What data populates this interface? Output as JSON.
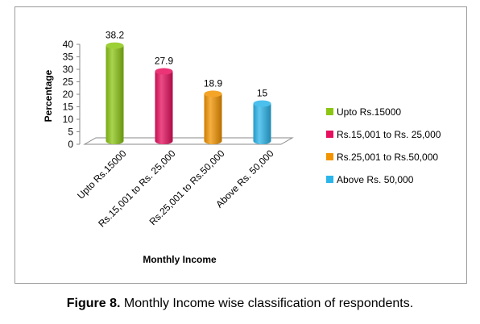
{
  "chart_data": {
    "type": "bar",
    "categories": [
      "Upto Rs.15000",
      "Rs.15,001 to Rs. 25,000",
      "Rs.25,001 to Rs.50,000",
      "Above Rs. 50,000"
    ],
    "values": [
      38.2,
      27.9,
      18.9,
      15
    ],
    "value_labels": [
      "38.2",
      "27.9",
      "18.9",
      "15"
    ],
    "xlabel": "Monthly Income",
    "ylabel": "Percentage",
    "ylim": [
      0,
      40
    ],
    "yticks": [
      "0",
      "5",
      "10",
      "15",
      "20",
      "25",
      "30",
      "35",
      "40"
    ],
    "grid": false,
    "legend_position": "right",
    "colors": [
      "#8cc614",
      "#e6105e",
      "#f29400",
      "#2bb5ea"
    ],
    "style": "3d-cylinder"
  },
  "caption": {
    "number": "Figure 8.",
    "text": " Monthly Income wise classification of respondents."
  }
}
